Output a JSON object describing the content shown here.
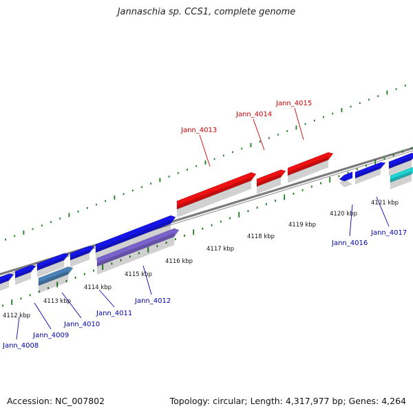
{
  "title": "Jannaschia sp. CCS1, complete genome",
  "footer": {
    "accession": "Accession: NC_007802",
    "summary": "Topology: circular; Length: 4,317,977 bp; Genes: 4,264"
  },
  "colors": {
    "backbone": "#7a7a7a",
    "tick": "#1a7a1a",
    "gene_blue": "#1515e8",
    "gene_red": "#ee1111",
    "gene_purple": "#7a62cc",
    "gene_steel": "#4a82b8",
    "gene_cyan": "#22d4d4",
    "label_blue": "#0000aa",
    "label_red": "#cc0000"
  },
  "scale_labels": [
    "4112 kbp",
    "4113 kbp",
    "4114 kbp",
    "4115 kbp",
    "4116 kbp",
    "4117 kbp",
    "4118 kbp",
    "4119 kbp",
    "4120 kbp",
    "4121 kbp"
  ],
  "genes": [
    {
      "name": "Jann_4008",
      "color": "gene_blue"
    },
    {
      "name": "Jann_4009",
      "color": "gene_blue"
    },
    {
      "name": "Jann_4010",
      "color": "gene_steel"
    },
    {
      "name": "Jann_4011",
      "color": "gene_blue"
    },
    {
      "name": "Jann_4012",
      "color": "gene_purple"
    },
    {
      "name": "Jann_4013",
      "color": "gene_red"
    },
    {
      "name": "Jann_4014",
      "color": "gene_red"
    },
    {
      "name": "Jann_4015",
      "color": "gene_red"
    },
    {
      "name": "Jann_4016",
      "color": "gene_blue"
    },
    {
      "name": "Jann_4017",
      "color": "gene_cyan"
    }
  ]
}
